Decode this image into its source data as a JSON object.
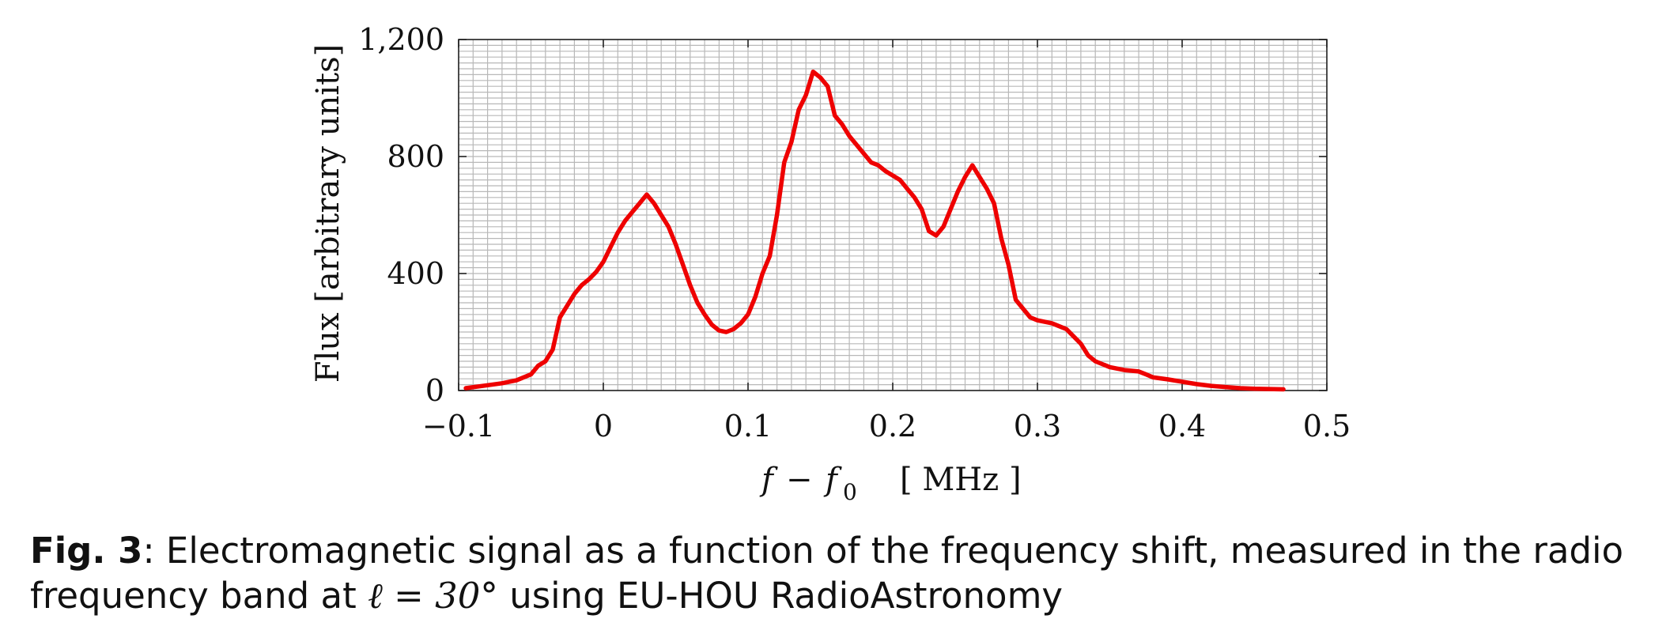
{
  "caption": {
    "label": "Fig. 3",
    "sep": ":",
    "text_line1": " Electromagnetic signal as a function of the frequency shift, measured in the radio",
    "text_line2_a": "frequency band at ",
    "math": "ℓ = 30°",
    "text_line2_b": " using EU-HOU RadioAstronomy"
  },
  "chart_data": {
    "type": "line",
    "xlabel": "f − f₀ [ MHz ]",
    "ylabel": "Flux [arbitrary units]",
    "xlim": [
      -0.1,
      0.5
    ],
    "ylim": [
      0,
      1200
    ],
    "xticks": [
      -0.1,
      0,
      0.1,
      0.2,
      0.3,
      0.4,
      0.5
    ],
    "xtick_labels": [
      "−0.1",
      "0",
      "0.1",
      "0.2",
      "0.3",
      "0.4",
      "0.5"
    ],
    "yticks": [
      0,
      400,
      800,
      1200
    ],
    "ytick_labels": [
      "0",
      "400",
      "800",
      "1,200"
    ],
    "grid": true,
    "line_color": "#ee0000",
    "series": [
      {
        "x": [
          -0.095,
          -0.08,
          -0.07,
          -0.06,
          -0.05,
          -0.045,
          -0.04,
          -0.035,
          -0.03,
          -0.025,
          -0.02,
          -0.015,
          -0.01,
          -0.005,
          0.0,
          0.005,
          0.01,
          0.015,
          0.02,
          0.025,
          0.03,
          0.035,
          0.04,
          0.045,
          0.05,
          0.055,
          0.06,
          0.065,
          0.07,
          0.075,
          0.08,
          0.085,
          0.09,
          0.095,
          0.1,
          0.105,
          0.11,
          0.115,
          0.12,
          0.125,
          0.13,
          0.135,
          0.14,
          0.145,
          0.15,
          0.155,
          0.16,
          0.165,
          0.17,
          0.175,
          0.18,
          0.185,
          0.19,
          0.195,
          0.2,
          0.205,
          0.21,
          0.215,
          0.22,
          0.225,
          0.23,
          0.235,
          0.24,
          0.245,
          0.25,
          0.255,
          0.26,
          0.265,
          0.27,
          0.275,
          0.28,
          0.285,
          0.29,
          0.295,
          0.3,
          0.31,
          0.32,
          0.33,
          0.335,
          0.34,
          0.35,
          0.36,
          0.37,
          0.375,
          0.38,
          0.39,
          0.4,
          0.41,
          0.42,
          0.43,
          0.44,
          0.45,
          0.46,
          0.47
        ],
        "y": [
          8,
          18,
          25,
          35,
          55,
          85,
          100,
          140,
          250,
          290,
          330,
          360,
          380,
          405,
          440,
          490,
          540,
          580,
          610,
          640,
          670,
          640,
          600,
          560,
          500,
          430,
          360,
          300,
          260,
          225,
          205,
          200,
          210,
          230,
          260,
          320,
          400,
          460,
          600,
          780,
          850,
          960,
          1010,
          1090,
          1070,
          1040,
          940,
          910,
          870,
          840,
          810,
          780,
          770,
          750,
          735,
          720,
          690,
          660,
          620,
          545,
          530,
          560,
          620,
          680,
          730,
          770,
          730,
          690,
          640,
          520,
          430,
          310,
          280,
          250,
          240,
          230,
          210,
          160,
          120,
          100,
          80,
          70,
          65,
          55,
          45,
          38,
          30,
          22,
          16,
          12,
          8,
          6,
          5,
          4
        ]
      }
    ]
  }
}
